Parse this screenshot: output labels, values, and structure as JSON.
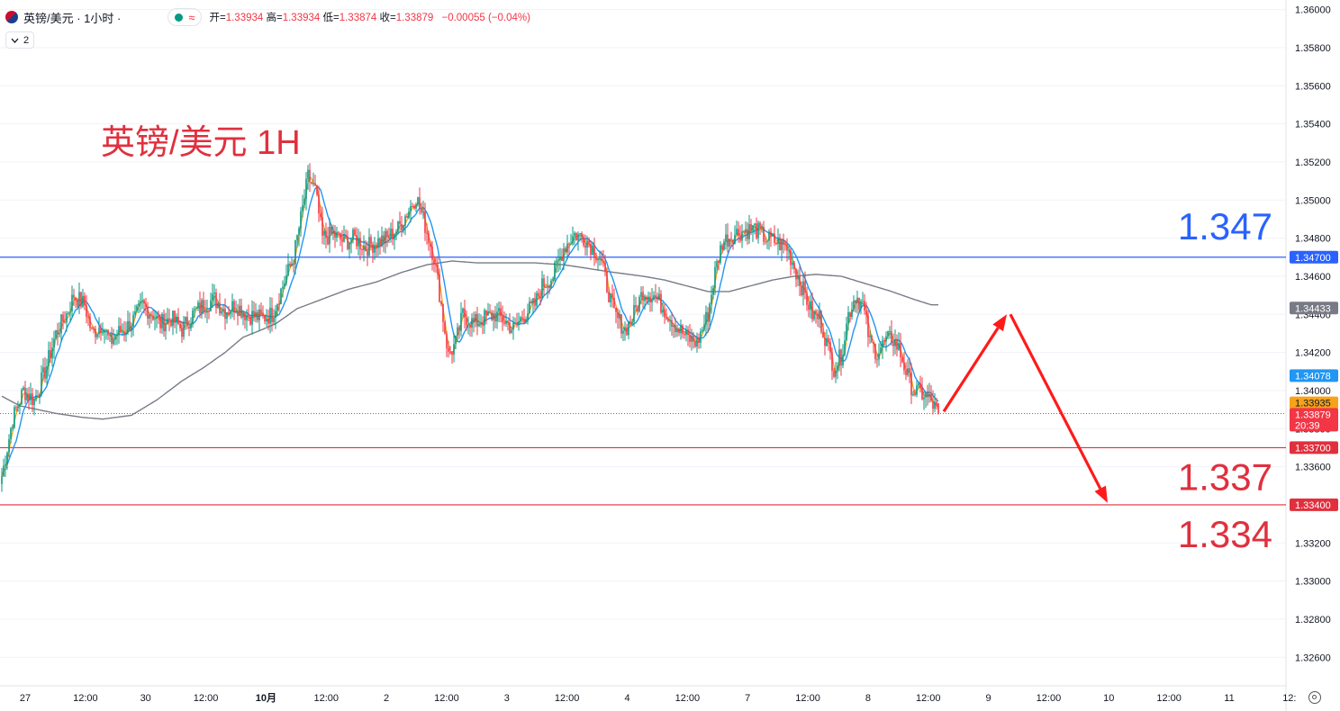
{
  "header": {
    "symbol": "英镑/美元 · 1小时 ·",
    "wave_icon": "≈",
    "open_label": "开=",
    "open": "1.33934",
    "high_label": "高=",
    "high": "1.33934",
    "low_label": "低=",
    "low": "1.33874",
    "close_label": "收=",
    "close": "1.33879",
    "change": "−0.00055 (−0.04%)"
  },
  "indicator_toggle": {
    "count": "2"
  },
  "annotation_title": "英镑/美元 1H",
  "chart_data": {
    "type": "candlestick",
    "symbol": "GBPUSD",
    "interval": "1H",
    "ylim": [
      1.3245,
      1.3605
    ],
    "y_ticks": [
      "1.36000",
      "1.35800",
      "1.35600",
      "1.35400",
      "1.35200",
      "1.35000",
      "1.34800",
      "1.34600",
      "1.34400",
      "1.34200",
      "1.34000",
      "1.33800",
      "1.33600",
      "1.33400",
      "1.33200",
      "1.33000",
      "1.32800",
      "1.32600"
    ],
    "x_ticks": [
      "27",
      "12:00",
      "30",
      "12:00",
      "10月",
      "12:00",
      "2",
      "12:00",
      "3",
      "12:00",
      "4",
      "12:00",
      "7",
      "12:00",
      "8",
      "12:00",
      "9",
      "12:00",
      "10",
      "12:00",
      "11",
      "12:"
    ],
    "x_tick_bars": [
      0,
      21,
      44,
      65,
      88,
      109,
      132,
      153,
      176,
      197,
      220,
      241,
      264,
      285,
      308,
      329,
      352,
      373,
      396,
      417,
      440,
      461
    ],
    "total_slots": 472,
    "price_path": [
      [
        0,
        1.3355
      ],
      [
        6,
        1.3385
      ],
      [
        12,
        1.34
      ],
      [
        18,
        1.3395
      ],
      [
        24,
        1.341
      ],
      [
        30,
        1.343
      ],
      [
        36,
        1.344
      ],
      [
        40,
        1.345
      ],
      [
        46,
        1.3445
      ],
      [
        50,
        1.343
      ],
      [
        56,
        1.3435
      ],
      [
        60,
        1.3425
      ],
      [
        64,
        1.343
      ],
      [
        68,
        1.3432
      ],
      [
        74,
        1.3438
      ],
      [
        78,
        1.3445
      ],
      [
        84,
        1.344
      ],
      [
        88,
        1.3435
      ],
      [
        94,
        1.3438
      ],
      [
        100,
        1.3432
      ],
      [
        106,
        1.344
      ],
      [
        112,
        1.3445
      ],
      [
        118,
        1.3448
      ],
      [
        124,
        1.3442
      ],
      [
        130,
        1.3445
      ],
      [
        136,
        1.344
      ],
      [
        144,
        1.3438
      ],
      [
        150,
        1.344
      ],
      [
        156,
        1.3455
      ],
      [
        162,
        1.347
      ],
      [
        166,
        1.349
      ],
      [
        170,
        1.3512
      ],
      [
        174,
        1.3505
      ],
      [
        178,
        1.348
      ],
      [
        184,
        1.3482
      ],
      [
        190,
        1.3478
      ],
      [
        196,
        1.348
      ],
      [
        202,
        1.3475
      ],
      [
        208,
        1.3478
      ],
      [
        214,
        1.348
      ],
      [
        220,
        1.3485
      ],
      [
        226,
        1.3495
      ],
      [
        230,
        1.3502
      ],
      [
        234,
        1.349
      ],
      [
        240,
        1.347
      ],
      [
        244,
        1.3445
      ],
      [
        248,
        1.3418
      ],
      [
        252,
        1.3425
      ],
      [
        256,
        1.344
      ],
      [
        262,
        1.3435
      ],
      [
        268,
        1.3438
      ],
      [
        274,
        1.344
      ],
      [
        280,
        1.3436
      ],
      [
        284,
        1.3432
      ],
      [
        290,
        1.344
      ],
      [
        296,
        1.3445
      ],
      [
        300,
        1.3455
      ],
      [
        306,
        1.346
      ],
      [
        312,
        1.3475
      ],
      [
        318,
        1.3482
      ],
      [
        324,
        1.348
      ],
      [
        328,
        1.3475
      ],
      [
        332,
        1.347
      ],
      [
        336,
        1.3455
      ],
      [
        340,
        1.344
      ],
      [
        346,
        1.3432
      ],
      [
        350,
        1.3438
      ],
      [
        356,
        1.3452
      ],
      [
        362,
        1.345
      ],
      [
        366,
        1.3445
      ],
      [
        370,
        1.344
      ],
      [
        376,
        1.3432
      ],
      [
        380,
        1.3428
      ],
      [
        386,
        1.3425
      ],
      [
        392,
        1.344
      ],
      [
        396,
        1.3462
      ],
      [
        400,
        1.3478
      ],
      [
        406,
        1.3482
      ],
      [
        412,
        1.3484
      ],
      [
        418,
        1.3485
      ],
      [
        424,
        1.348
      ],
      [
        430,
        1.3478
      ],
      [
        436,
        1.3475
      ],
      [
        440,
        1.3465
      ],
      [
        446,
        1.345
      ],
      [
        450,
        1.344
      ],
      [
        454,
        1.3438
      ],
      [
        458,
        1.3425
      ],
      [
        462,
        1.3412
      ],
      [
        466,
        1.3418
      ],
      [
        470,
        1.344
      ],
      [
        474,
        1.345
      ],
      [
        478,
        1.3445
      ],
      [
        482,
        1.3425
      ],
      [
        486,
        1.342
      ],
      [
        490,
        1.3425
      ],
      [
        494,
        1.3428
      ],
      [
        498,
        1.3422
      ],
      [
        502,
        1.341
      ],
      [
        506,
        1.34
      ],
      [
        512,
        1.3398
      ],
      [
        516,
        1.3394
      ],
      [
        520,
        1.3388
      ]
    ],
    "last_bar_index": 520,
    "ma_fast": {
      "name": "",
      "color": "#f7a21b",
      "period": 3
    },
    "ma_mid": {
      "name": "",
      "color": "#2196f3",
      "period": 9
    },
    "ma_slow_path": [
      [
        0,
        1.3397
      ],
      [
        10,
        1.3392
      ],
      [
        20,
        1.339
      ],
      [
        30,
        1.3388
      ],
      [
        44,
        1.3386
      ],
      [
        56,
        1.3385
      ],
      [
        72,
        1.3387
      ],
      [
        86,
        1.3395
      ],
      [
        100,
        1.3405
      ],
      [
        112,
        1.3412
      ],
      [
        124,
        1.342
      ],
      [
        134,
        1.3428
      ],
      [
        142,
        1.3431
      ],
      [
        152,
        1.3435
      ],
      [
        164,
        1.3443
      ],
      [
        178,
        1.3448
      ],
      [
        192,
        1.3453
      ],
      [
        208,
        1.3457
      ],
      [
        222,
        1.3462
      ],
      [
        236,
        1.3466
      ],
      [
        250,
        1.3468
      ],
      [
        264,
        1.3467
      ],
      [
        280,
        1.3467
      ],
      [
        296,
        1.3467
      ],
      [
        312,
        1.3466
      ],
      [
        326,
        1.3464
      ],
      [
        340,
        1.3462
      ],
      [
        356,
        1.346
      ],
      [
        368,
        1.3458
      ],
      [
        380,
        1.3455
      ],
      [
        392,
        1.3452
      ],
      [
        404,
        1.3452
      ],
      [
        416,
        1.3455
      ],
      [
        428,
        1.3458
      ],
      [
        440,
        1.346
      ],
      [
        452,
        1.3461
      ],
      [
        466,
        1.346
      ],
      [
        480,
        1.3456
      ],
      [
        494,
        1.3452
      ],
      [
        506,
        1.3448
      ],
      [
        516,
        1.3445
      ]
    ],
    "ma_slow": {
      "name": "",
      "color": "#787b86",
      "last": "1.34433"
    },
    "ma_mid_last": "1.34078",
    "ma_fast_last": "1.33935",
    "last_price": "1.33879",
    "countdown": "20:39",
    "levels": [
      {
        "price": 1.347,
        "label": "1.34700",
        "text": "1.347",
        "color": "#2962ff"
      },
      {
        "price": 1.337,
        "label": "1.33700",
        "text": "1.337",
        "color": "#e0303e"
      },
      {
        "price": 1.334,
        "label": "1.33400",
        "text": "1.334",
        "color": "#e0303e"
      }
    ],
    "forecast_arrows": [
      {
        "from": [
          1.3389,
          1048
        ],
        "to": [
          1.344,
          1118
        ],
        "color": "#ff1a1a"
      },
      {
        "from": [
          1.344,
          1122
        ],
        "to": [
          1.3341,
          1230
        ],
        "color": "#ff1a1a"
      }
    ],
    "colors": {
      "up": "#089981",
      "down": "#f23645",
      "grid": "#f0f3fa"
    }
  }
}
